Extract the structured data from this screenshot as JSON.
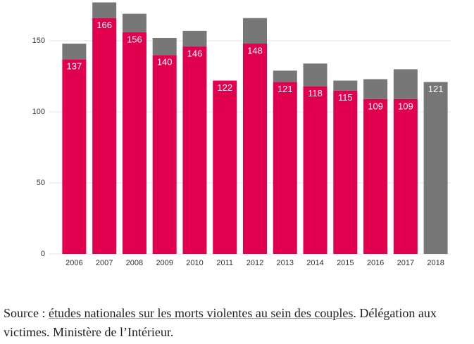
{
  "chart_data": {
    "type": "stacked_bar",
    "categories": [
      "2006",
      "2007",
      "2008",
      "2009",
      "2010",
      "2011",
      "2012",
      "2013",
      "2014",
      "2015",
      "2016",
      "2017",
      "2018"
    ],
    "series": [
      {
        "color": "#e0004d",
        "values": [
          137,
          166,
          156,
          140,
          146,
          122,
          148,
          121,
          118,
          115,
          109,
          109,
          null
        ]
      },
      {
        "color": "#777777",
        "values": [
          11,
          11,
          13,
          12,
          11,
          null,
          18,
          8,
          16,
          7,
          14,
          21,
          121
        ]
      }
    ],
    "ylim": [
      0,
      180
    ],
    "yticks": [
      0,
      50,
      100,
      150
    ],
    "grid": true
  },
  "source": {
    "prefix": "Source : ",
    "link": "études nationales sur les morts violentes au sein des couples",
    "suffix": ". Délégation aux victimes. Ministère de l’Intérieur."
  }
}
